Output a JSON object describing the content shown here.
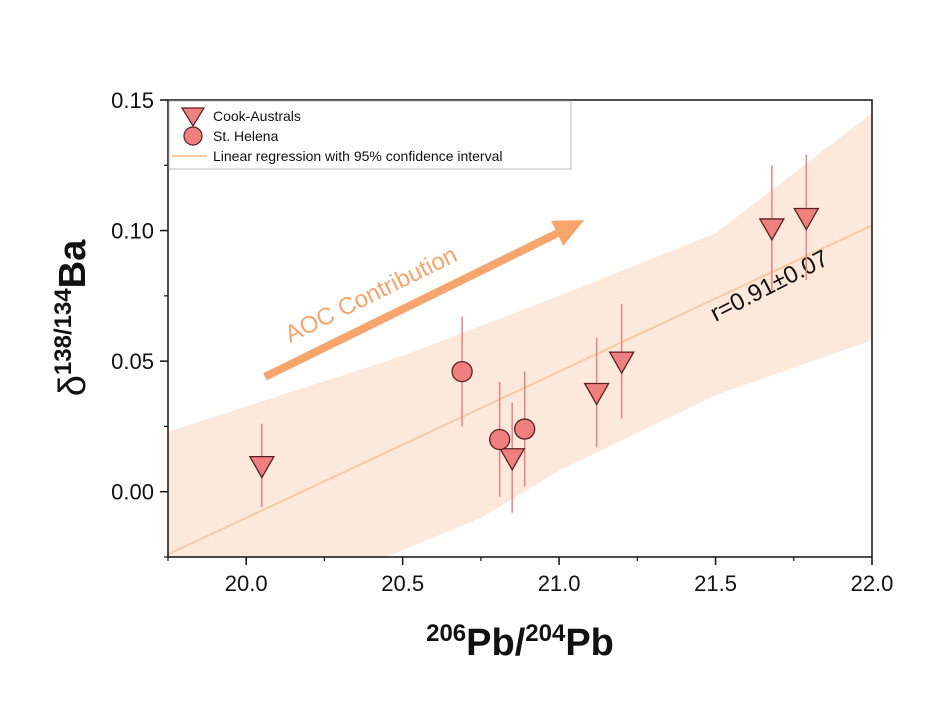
{
  "chart_data": {
    "type": "scatter",
    "xlabel": {
      "sup1": "206",
      "base1": "Pb/",
      "sup2": "204",
      "base2": "Pb"
    },
    "ylabel": {
      "base": "δ",
      "sup": "138/134",
      "tail": "Ba"
    },
    "xlim": [
      19.75,
      22.0
    ],
    "ylim": [
      -0.025,
      0.15
    ],
    "xticks": [
      20.0,
      20.5,
      21.0,
      21.5,
      22.0
    ],
    "xtick_labels": [
      "20.0",
      "20.5",
      "21.0",
      "21.5",
      "22.0"
    ],
    "yticks": [
      0.0,
      0.05,
      0.1,
      0.15
    ],
    "ytick_labels": [
      "0.00",
      "0.05",
      "0.10",
      "0.15"
    ],
    "series": [
      {
        "name": "Cook-Australs",
        "marker": "triangle-down",
        "color": "#f08080",
        "points": [
          {
            "x": 20.05,
            "y": 0.01,
            "err": 0.016
          },
          {
            "x": 20.85,
            "y": 0.013,
            "err": 0.021
          },
          {
            "x": 21.12,
            "y": 0.038,
            "err": 0.021
          },
          {
            "x": 21.2,
            "y": 0.05,
            "err": 0.022
          },
          {
            "x": 21.68,
            "y": 0.101,
            "err": 0.024
          },
          {
            "x": 21.79,
            "y": 0.105,
            "err": 0.024
          }
        ]
      },
      {
        "name": "St. Helena",
        "marker": "circle",
        "color": "#f08080",
        "points": [
          {
            "x": 20.69,
            "y": 0.046,
            "err": 0.021
          },
          {
            "x": 20.81,
            "y": 0.02,
            "err": 0.022
          },
          {
            "x": 20.89,
            "y": 0.024,
            "err": 0.022
          }
        ]
      }
    ],
    "regression": {
      "name": "Linear regression with 95% confidence interval",
      "line": [
        [
          19.75,
          -0.024
        ],
        [
          22.0,
          0.102
        ]
      ],
      "band_upper": [
        [
          19.75,
          0.023
        ],
        [
          20.5,
          0.052
        ],
        [
          21.0,
          0.075
        ],
        [
          21.5,
          0.099
        ],
        [
          22.0,
          0.145
        ]
      ],
      "band_lower": [
        [
          20.45,
          -0.025
        ],
        [
          20.75,
          -0.01
        ],
        [
          21.0,
          0.008
        ],
        [
          21.5,
          0.037
        ],
        [
          22.0,
          0.058
        ]
      ],
      "line_color": "#f5cba7",
      "band_color": "#fde9dc"
    },
    "legend_position": "top-left",
    "annotations": {
      "arrow_label": "AOC Contribution",
      "arrow_color": "#f7a46d",
      "arrow_from": [
        20.06,
        0.044
      ],
      "arrow_to": [
        21.08,
        0.104
      ],
      "correlation": "r=0.91±0.07",
      "correlation_anchor": [
        21.5,
        0.065
      ]
    },
    "grid": false
  }
}
